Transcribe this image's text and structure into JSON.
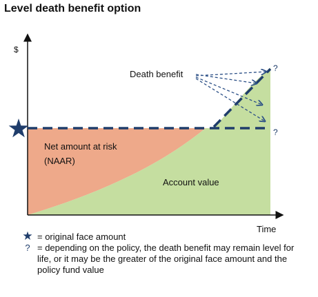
{
  "title": "Level death benefit option",
  "axis": {
    "y_label": "$",
    "x_label": "Time"
  },
  "labels": {
    "death_benefit": "Death benefit",
    "naar_line1": "Net amount at risk",
    "naar_line2": "(NAAR)",
    "account_value": "Account value",
    "question_mark": "?"
  },
  "legend": {
    "star_text": "= original face amount",
    "question_text": "= depending on the policy, the death benefit may remain level for life, or it may be the greater of the original face amount and the policy fund value"
  },
  "colors": {
    "naar_fill": "#eea98a",
    "account_fill": "#c5dea0",
    "dash_line": "#1f3d6b",
    "axis": "#111111"
  },
  "icons": {
    "star": "star-icon",
    "question": "question-mark-icon"
  }
}
